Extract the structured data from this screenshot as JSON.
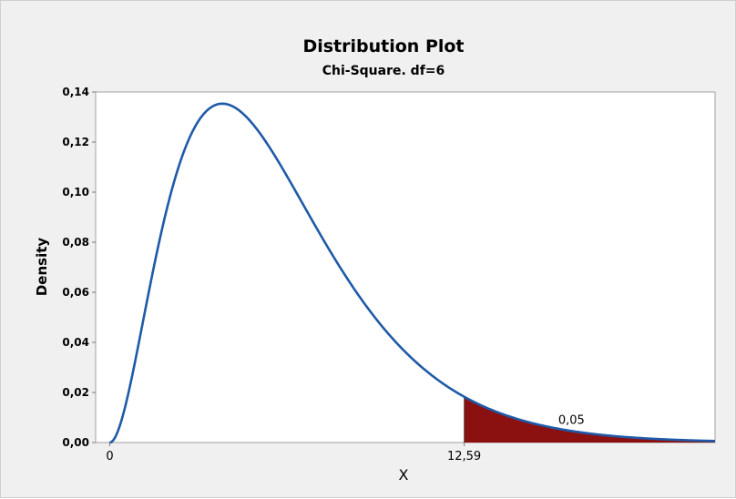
{
  "chart_data": {
    "type": "area",
    "title": "Distribution Plot",
    "subtitle": "Chi-Square. df=6",
    "xlabel": "X",
    "ylabel": "Density",
    "distribution": "chi-square",
    "df": 6,
    "xlim": [
      -0.5,
      21.5
    ],
    "ylim": [
      0,
      0.14
    ],
    "yticks": [
      "0,00",
      "0,02",
      "0,04",
      "0,06",
      "0,08",
      "0,10",
      "0,12",
      "0,14"
    ],
    "xticks": [
      {
        "value": 0,
        "label": "0"
      },
      {
        "value": 12.59,
        "label": "12,59"
      }
    ],
    "critical_value": 12.59,
    "shaded_region": {
      "from": 12.59,
      "to": 21.5,
      "probability_label": "0,05",
      "color": "#8b1010"
    },
    "curve_color": "#1f5aa8",
    "grid": false,
    "legend": "none",
    "points": [
      {
        "x": 0,
        "y": 0.0
      },
      {
        "x": 1,
        "y": 0.0379
      },
      {
        "x": 2,
        "y": 0.092
      },
      {
        "x": 3,
        "y": 0.1255
      },
      {
        "x": 4,
        "y": 0.1353
      },
      {
        "x": 5,
        "y": 0.1283
      },
      {
        "x": 6,
        "y": 0.112
      },
      {
        "x": 7,
        "y": 0.0925
      },
      {
        "x": 8,
        "y": 0.0733
      },
      {
        "x": 9,
        "y": 0.0562
      },
      {
        "x": 10,
        "y": 0.0421
      },
      {
        "x": 12,
        "y": 0.0223
      },
      {
        "x": 12.59,
        "y": 0.018
      },
      {
        "x": 14,
        "y": 0.0112
      },
      {
        "x": 16,
        "y": 0.0054
      },
      {
        "x": 18,
        "y": 0.0025
      },
      {
        "x": 21.5,
        "y": 0.0007
      }
    ]
  }
}
